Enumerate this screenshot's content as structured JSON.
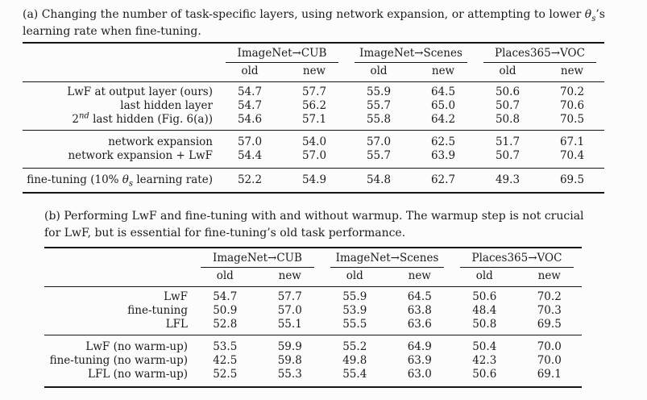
{
  "colors": {
    "text": "#1b1b1b",
    "rule": "#141414",
    "bg": "#fcfcfc"
  },
  "caption_a": {
    "line1_pre": "(a) Changing the number of task-specific layers, using network expansion, or attempting to lower ",
    "theta": "θ",
    "theta_sub": "s",
    "line1_post": "’s",
    "line2": "learning rate when fine-tuning."
  },
  "caption_b": {
    "line1": "(b) Performing LwF and fine-tuning with and without warmup. The warmup step is not crucial",
    "line2": "for LwF, but is essential for fine-tuning’s old task performance."
  },
  "table_a": {
    "groups": [
      "ImageNet→CUB",
      "ImageNet→Scenes",
      "Places365→VOC"
    ],
    "subheads": [
      "old",
      "new",
      "old",
      "new",
      "old",
      "new"
    ],
    "blocks": [
      {
        "rows": [
          {
            "label": [
              {
                "t": "LwF at output layer (ours)"
              }
            ],
            "values": [
              "54.7",
              "57.7",
              "55.9",
              "64.5",
              "50.6",
              "70.2"
            ]
          },
          {
            "label": [
              {
                "t": "last hidden layer"
              }
            ],
            "values": [
              "54.7",
              "56.2",
              "55.7",
              "65.0",
              "50.7",
              "70.6"
            ]
          },
          {
            "label": [
              {
                "t": "2"
              },
              {
                "t": "nd",
                "style": "sup-italic"
              },
              {
                "t": " last hidden (Fig. 6(a))"
              }
            ],
            "values": [
              "54.6",
              "57.1",
              "55.8",
              "64.2",
              "50.8",
              "70.5"
            ]
          }
        ]
      },
      {
        "rows": [
          {
            "label": [
              {
                "t": "network expansion"
              }
            ],
            "values": [
              "57.0",
              "54.0",
              "57.0",
              "62.5",
              "51.7",
              "67.1"
            ]
          },
          {
            "label": [
              {
                "t": "network expansion + LwF"
              }
            ],
            "values": [
              "54.4",
              "57.0",
              "55.7",
              "63.9",
              "50.7",
              "70.4"
            ]
          }
        ]
      },
      {
        "rows": [
          {
            "label": [
              {
                "t": "fine-tuning (10% "
              },
              {
                "t": "θ",
                "style": "italic"
              },
              {
                "t": "s",
                "style": "sub-italic"
              },
              {
                "t": " learning rate)"
              }
            ],
            "values": [
              "52.2",
              "54.9",
              "54.8",
              "62.7",
              "49.3",
              "69.5"
            ]
          }
        ]
      }
    ]
  },
  "table_b": {
    "groups": [
      "ImageNet→CUB",
      "ImageNet→Scenes",
      "Places365→VOC"
    ],
    "subheads": [
      "old",
      "new",
      "old",
      "new",
      "old",
      "new"
    ],
    "blocks": [
      {
        "rows": [
          {
            "label": [
              {
                "t": "LwF"
              }
            ],
            "values": [
              "54.7",
              "57.7",
              "55.9",
              "64.5",
              "50.6",
              "70.2"
            ]
          },
          {
            "label": [
              {
                "t": "fine-tuning"
              }
            ],
            "values": [
              "50.9",
              "57.0",
              "53.9",
              "63.8",
              "48.4",
              "70.3"
            ]
          },
          {
            "label": [
              {
                "t": "LFL"
              }
            ],
            "values": [
              "52.8",
              "55.1",
              "55.5",
              "63.6",
              "50.8",
              "69.5"
            ]
          }
        ]
      },
      {
        "rows": [
          {
            "label": [
              {
                "t": "LwF (no warm-up)"
              }
            ],
            "values": [
              "53.5",
              "59.9",
              "55.2",
              "64.9",
              "50.4",
              "70.0"
            ]
          },
          {
            "label": [
              {
                "t": "fine-tuning (no warm-up)"
              }
            ],
            "values": [
              "42.5",
              "59.8",
              "49.8",
              "63.9",
              "42.3",
              "70.0"
            ]
          },
          {
            "label": [
              {
                "t": "LFL (no warm-up)"
              }
            ],
            "values": [
              "52.5",
              "55.3",
              "55.4",
              "63.0",
              "50.6",
              "69.1"
            ]
          }
        ]
      }
    ]
  }
}
